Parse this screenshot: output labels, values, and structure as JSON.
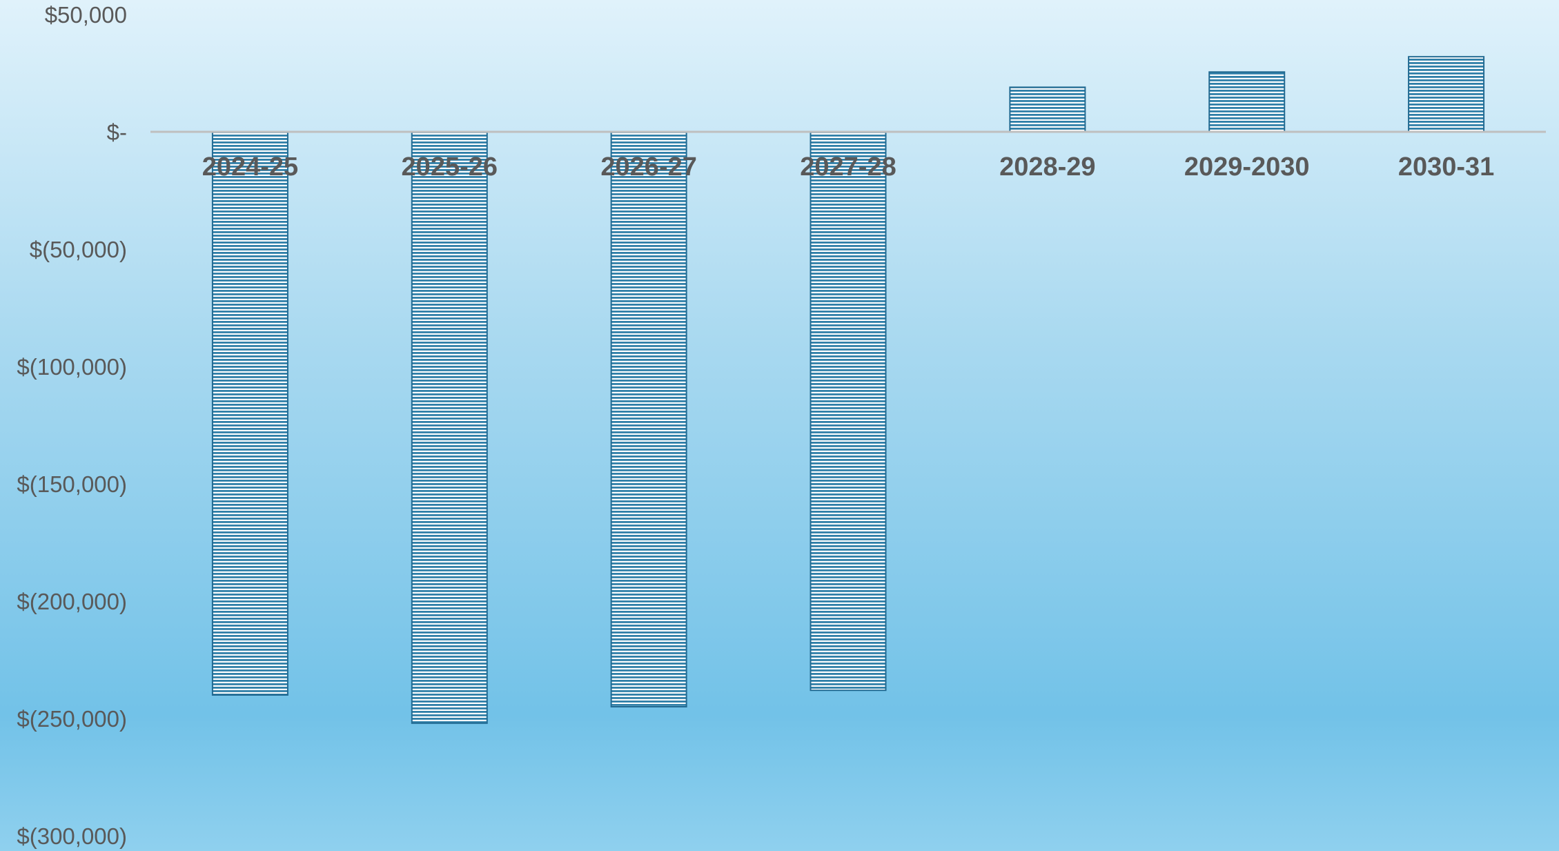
{
  "chart_data": {
    "type": "bar",
    "categories": [
      "2024-25",
      "2025-26",
      "2026-27",
      "2027-28",
      "2028-29",
      "2029-2030",
      "2030-31"
    ],
    "values": [
      -240000,
      -252000,
      -245000,
      -238000,
      19000,
      25500,
      32000
    ],
    "ylim": [
      -300000,
      50000
    ],
    "y_ticks": [
      {
        "value": 50000,
        "label": "$50,000"
      },
      {
        "value": 0,
        "label": "$-"
      },
      {
        "value": -50000,
        "label": "$(50,000)"
      },
      {
        "value": -100000,
        "label": "$(100,000)"
      },
      {
        "value": -150000,
        "label": "$(150,000)"
      },
      {
        "value": -200000,
        "label": "$(200,000)"
      },
      {
        "value": -250000,
        "label": "$(250,000)"
      },
      {
        "value": -300000,
        "label": "$(300,000)"
      }
    ],
    "grid": false,
    "legend": "none",
    "colors": {
      "bar_fill": "#ffffff",
      "bar_stripe": "#2f7fa8",
      "bar_edge": "#236b92",
      "zero_line": "#bfbfbf",
      "label_text": "#595959"
    }
  }
}
